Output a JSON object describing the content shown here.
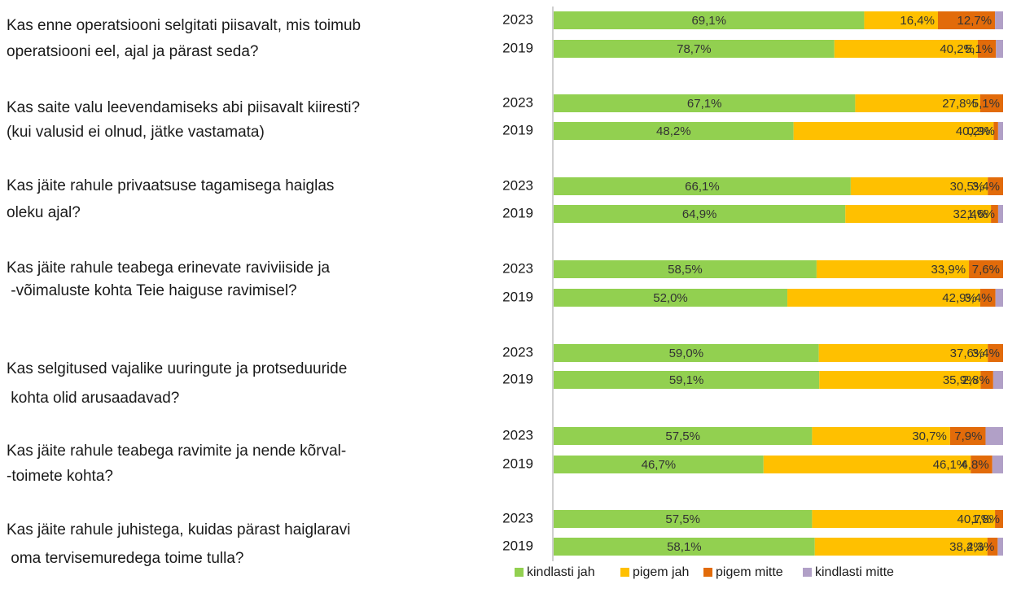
{
  "chart_data": {
    "type": "stacked_percent_bar",
    "groups": [
      [
        "Kas enne operatsiooni selgitati piisavalt, mis toimub",
        "operatsiooni eel, ajal ja pärast seda?"
      ],
      [
        "Kas saite valu leevendamiseks abi piisavalt kiiresti?",
        "(kui valusid ei olnud, jätke vastamata)"
      ],
      [
        "Kas jäite rahule privaatsuse tagamisega haiglas",
        "oleku ajal?"
      ],
      [
        "Kas jäite rahule teabega erinevate raviviiside ja",
        " -võimaluste kohta Teie haiguse ravimisel?"
      ],
      [
        "Kas selgitused vajalike uuringute ja protseduuride",
        " kohta olid arusaadavad?"
      ],
      [
        "Kas jäite rahule teabega ravimite ja nende kõrval-",
        "-toimete kohta?"
      ],
      [
        "Kas jäite rahule juhistega, kuidas pärast haiglaravi",
        " oma tervisemuredega toime tulla?"
      ]
    ],
    "categories": [
      "2023",
      "2019",
      "2023",
      "2019",
      "2023",
      "2019",
      "2023",
      "2019",
      "2023",
      "2019",
      "2023",
      "2019",
      "2023",
      "2019"
    ],
    "series": [
      {
        "name": "kindlasti jah",
        "color": "#92d050",
        "values": [
          69.1,
          78.7,
          67.1,
          48.2,
          66.1,
          64.9,
          58.5,
          52.0,
          59.0,
          59.1,
          57.5,
          46.7,
          57.5,
          58.1
        ],
        "value_labels": [
          "69,1%",
          "78,7%",
          "67,1%",
          "48,2%",
          "66,1%",
          "64,9%",
          "58,5%",
          "52,0%",
          "59,0%",
          "59,1%",
          "57,5%",
          "46,7%",
          "57,5%",
          "58,1%"
        ]
      },
      {
        "name": "pigem jah",
        "color": "#ffc000",
        "values": [
          16.4,
          40.2,
          27.8,
          40.2,
          30.5,
          32.4,
          33.9,
          42.9,
          37.6,
          35.9,
          30.7,
          46.1,
          40.7,
          38.4
        ],
        "value_labels": [
          "16,4%",
          "40,2%",
          "27,8%",
          "40,2%",
          "30,5%",
          "32,4%",
          "33,9%",
          "42,9%",
          "37,6%",
          "35,9%",
          "30,7%",
          "46,1%",
          "40,7%",
          "38,4%"
        ]
      },
      {
        "name": "pigem mitte",
        "color": "#e26b0a",
        "values": [
          12.7,
          5.1,
          5.1,
          0.9,
          3.4,
          1.6,
          7.6,
          3.4,
          3.4,
          2.8,
          7.9,
          4.8,
          1.8,
          2.3
        ],
        "value_labels": [
          "12,7%",
          "5,1%",
          "5,1%",
          "0,9%",
          "3,4%",
          "1,6%",
          "7,6%",
          "3,4%",
          "3,4%",
          "2,8%",
          "7,9%",
          "4,8%",
          "1,8%",
          "2,3%"
        ]
      },
      {
        "name": "kindlasti mitte",
        "color": "#b1a0c7",
        "values": [
          1.8,
          2.0,
          0,
          1.0,
          0,
          1.1,
          0,
          1.7,
          0,
          2.2,
          3.9,
          2.4,
          0,
          1.2
        ]
      }
    ]
  }
}
